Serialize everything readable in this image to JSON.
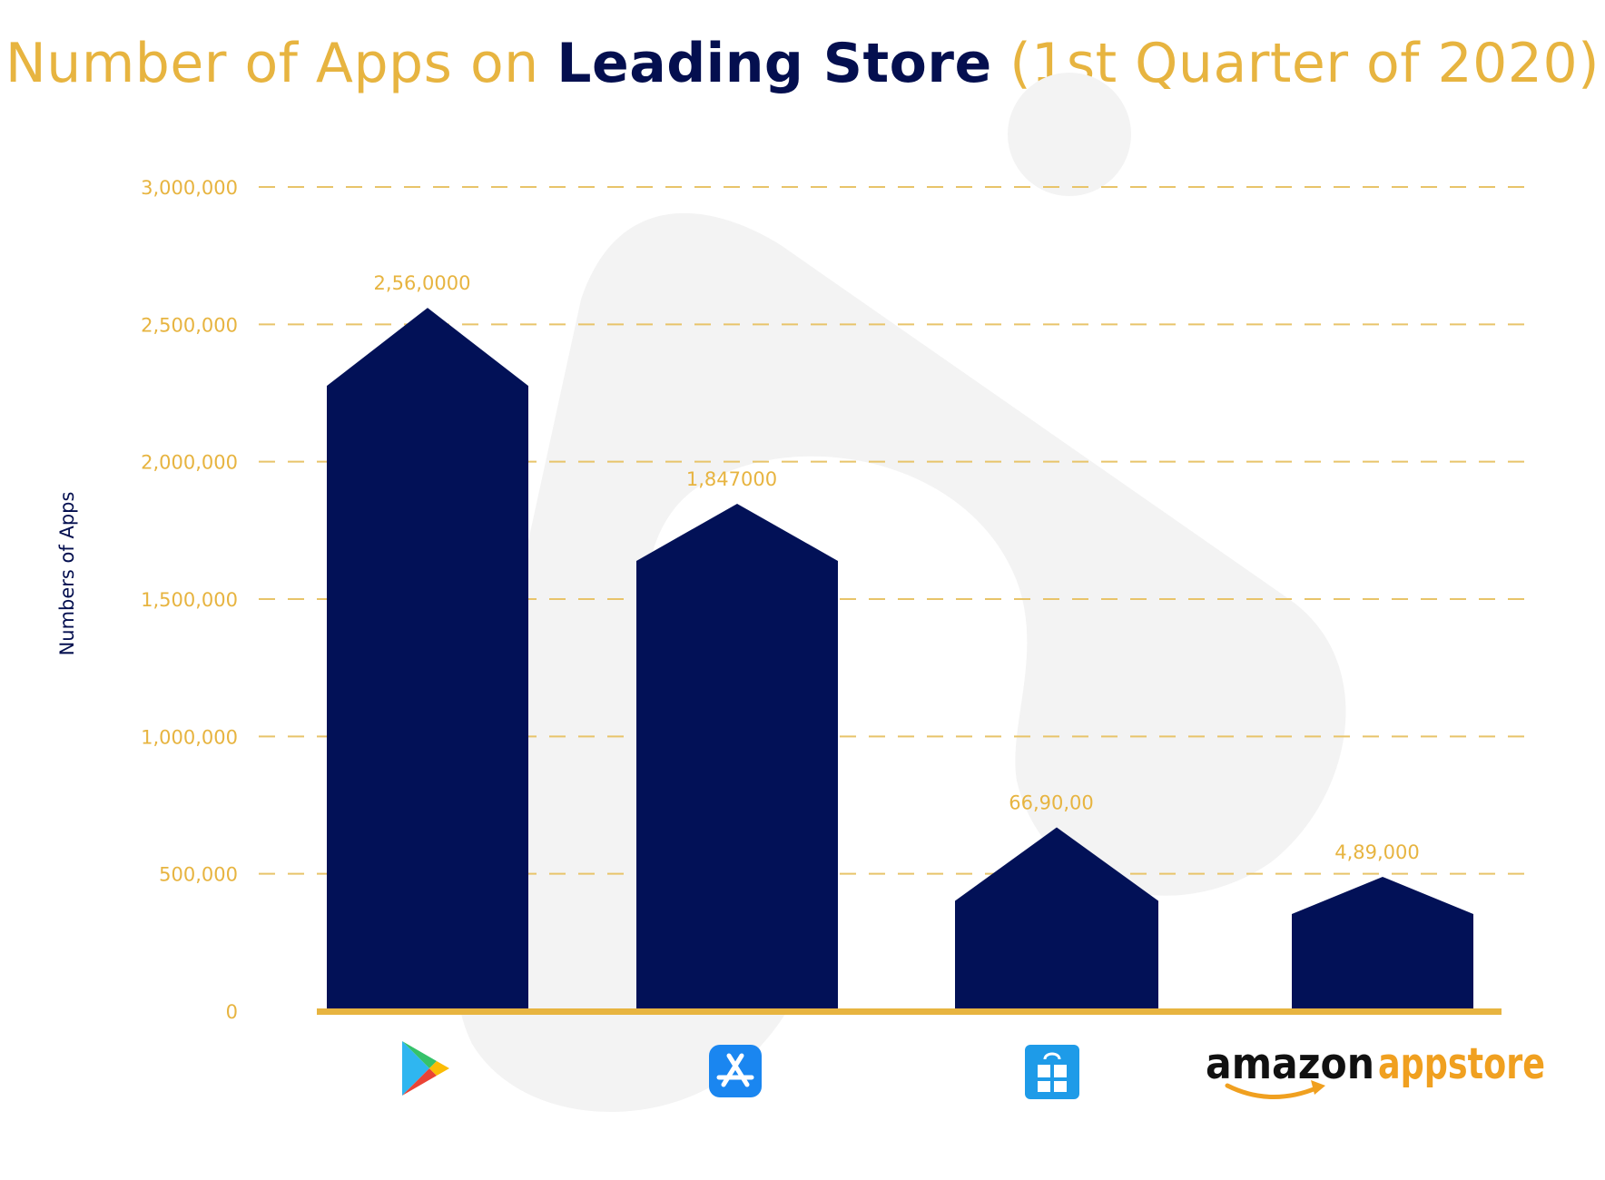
{
  "title": {
    "part1": "Number of Apps on ",
    "part2": "Leading Store",
    "part3": " (1st Quarter of 2020)"
  },
  "colors": {
    "title_gold": "#e7b440",
    "title_navy": "#040f4f",
    "bar": "#021157",
    "axis": "#e7b440",
    "grid": "#e8c46a",
    "tick_label": "#e7b440",
    "ylabel": "#040f4f",
    "watermark": "#f3f3f3"
  },
  "chart_data": {
    "type": "bar",
    "title": "Number of Apps on Leading Store (1st Quarter of 2020)",
    "xlabel": "",
    "ylabel": "Numbers of Apps",
    "ylim": [
      0,
      3000000
    ],
    "yticks": [
      0,
      500000,
      1000000,
      1500000,
      2000000,
      2500000,
      3000000
    ],
    "ytick_labels": [
      "0",
      "500,000",
      "1,000,000",
      "1,500,000",
      "2,000,000",
      "2,500,000",
      "3,000,000"
    ],
    "grid": true,
    "categories": [
      "Google Play",
      "App Store",
      "Microsoft Store",
      "Amazon Appstore"
    ],
    "category_icons": [
      "google-play-icon",
      "app-store-icon",
      "microsoft-store-icon",
      "amazon-appstore-logo"
    ],
    "values": [
      2560000,
      1847000,
      669000,
      489000
    ],
    "data_labels": [
      "2,56,0000",
      "1,847000",
      "66,90,00",
      "4,89,000"
    ]
  },
  "logos": {
    "amazon_word": "amazon",
    "appstore_word": "appstore"
  }
}
